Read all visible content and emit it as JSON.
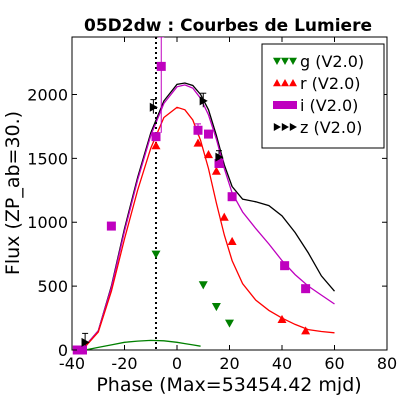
{
  "chart_data": {
    "type": "scatter",
    "title": "05D2dw : Courbes de Lumiere",
    "xlabel": "Phase (Max=53454.42 mjd)",
    "ylabel": "Flux (ZP_ab=30.)",
    "xlim": [
      -40,
      80
    ],
    "ylim": [
      0,
      2450
    ],
    "x_ticks": [
      -40,
      -20,
      0,
      20,
      40,
      60,
      80
    ],
    "x_tick_labels": [
      "-40",
      "-20",
      "0",
      "20",
      "40",
      "60",
      "80"
    ],
    "y_ticks": [
      0,
      500,
      1000,
      1500,
      2000
    ],
    "y_tick_labels": [
      "0",
      "500",
      "1000",
      "1500",
      "2000"
    ],
    "grid": false,
    "legend_position": "top-right",
    "vline_x": -8,
    "series": [
      {
        "name": "g (V2.0)",
        "color": "#008000",
        "marker": "triangle-down",
        "points": [
          [
            -8,
            750
          ],
          [
            10,
            510
          ],
          [
            15,
            340
          ],
          [
            20,
            210
          ]
        ]
      },
      {
        "name": "r (V2.0)",
        "color": "#ff0000",
        "marker": "triangle-up",
        "points": [
          [
            -8,
            1600
          ],
          [
            8,
            1620
          ],
          [
            12,
            1530
          ],
          [
            15,
            1400
          ],
          [
            18,
            1040
          ],
          [
            21,
            850
          ],
          [
            40,
            240
          ],
          [
            49,
            150
          ]
        ]
      },
      {
        "name": "i (V2.0)",
        "color": "#bf00bf",
        "marker": "square",
        "points": [
          [
            -38,
            0
          ],
          [
            -36,
            0
          ],
          [
            -25,
            970
          ],
          [
            -8,
            1670
          ],
          [
            -6,
            2220
          ],
          [
            8,
            1720
          ],
          [
            12,
            1690
          ],
          [
            16,
            1460
          ],
          [
            21,
            1200
          ],
          [
            41,
            660
          ],
          [
            49,
            480
          ]
        ]
      },
      {
        "name": "z (V2.0)",
        "color": "#000000",
        "marker": "triangle-right",
        "points": [
          [
            -35,
            60
          ],
          [
            -9,
            1900
          ],
          [
            10,
            1950
          ],
          [
            16,
            1510
          ]
        ]
      }
    ],
    "error_bars": [
      {
        "x": -35,
        "y": 60,
        "low": 0,
        "high": 130,
        "color": "#000000"
      },
      {
        "x": -6,
        "y": 2220,
        "low": 1700,
        "high": 2450,
        "color": "#bf00bf"
      },
      {
        "x": -9,
        "y": 1900,
        "low": 1850,
        "high": 1960,
        "color": "#000000"
      },
      {
        "x": 10,
        "y": 1950,
        "low": 1900,
        "high": 2010,
        "color": "#000000"
      },
      {
        "x": 8,
        "y": 1720,
        "low": 1680,
        "high": 1770,
        "color": "#bf00bf"
      },
      {
        "x": 16,
        "y": 1510,
        "low": 1470,
        "high": 1560,
        "color": "#000000"
      }
    ],
    "model_curves": [
      {
        "color": "#000000",
        "x": [
          -38,
          -35,
          -30,
          -25,
          -20,
          -15,
          -10,
          -5,
          0,
          3,
          6,
          9,
          12,
          15,
          18,
          21,
          25,
          30,
          35,
          40,
          45,
          50,
          55,
          60
        ],
        "y": [
          0,
          30,
          150,
          500,
          950,
          1350,
          1700,
          1950,
          2080,
          2090,
          2070,
          2000,
          1880,
          1680,
          1450,
          1280,
          1180,
          1160,
          1130,
          1050,
          920,
          760,
          580,
          460
        ]
      },
      {
        "color": "#bf00bf",
        "x": [
          -38,
          -35,
          -30,
          -25,
          -20,
          -15,
          -10,
          -5,
          0,
          3,
          6,
          9,
          12,
          15,
          18,
          21,
          25,
          30,
          35,
          40,
          45,
          50,
          55,
          60
        ],
        "y": [
          0,
          30,
          150,
          490,
          930,
          1330,
          1680,
          1930,
          2060,
          2075,
          2050,
          1970,
          1840,
          1650,
          1420,
          1230,
          1080,
          950,
          830,
          700,
          590,
          500,
          430,
          360
        ]
      },
      {
        "color": "#ff0000",
        "x": [
          -38,
          -35,
          -30,
          -25,
          -20,
          -15,
          -10,
          -5,
          0,
          3,
          6,
          9,
          12,
          15,
          18,
          21,
          25,
          30,
          35,
          40,
          45,
          50,
          55,
          60
        ],
        "y": [
          0,
          25,
          140,
          460,
          870,
          1250,
          1580,
          1820,
          1900,
          1880,
          1800,
          1640,
          1420,
          1150,
          900,
          700,
          520,
          390,
          310,
          250,
          200,
          160,
          145,
          135
        ]
      },
      {
        "color": "#008000",
        "x": [
          -35,
          -30,
          -25,
          -20,
          -15,
          -10,
          -5,
          0,
          3,
          6,
          9
        ],
        "y": [
          0,
          20,
          40,
          60,
          70,
          75,
          72,
          60,
          50,
          40,
          30
        ]
      }
    ]
  }
}
